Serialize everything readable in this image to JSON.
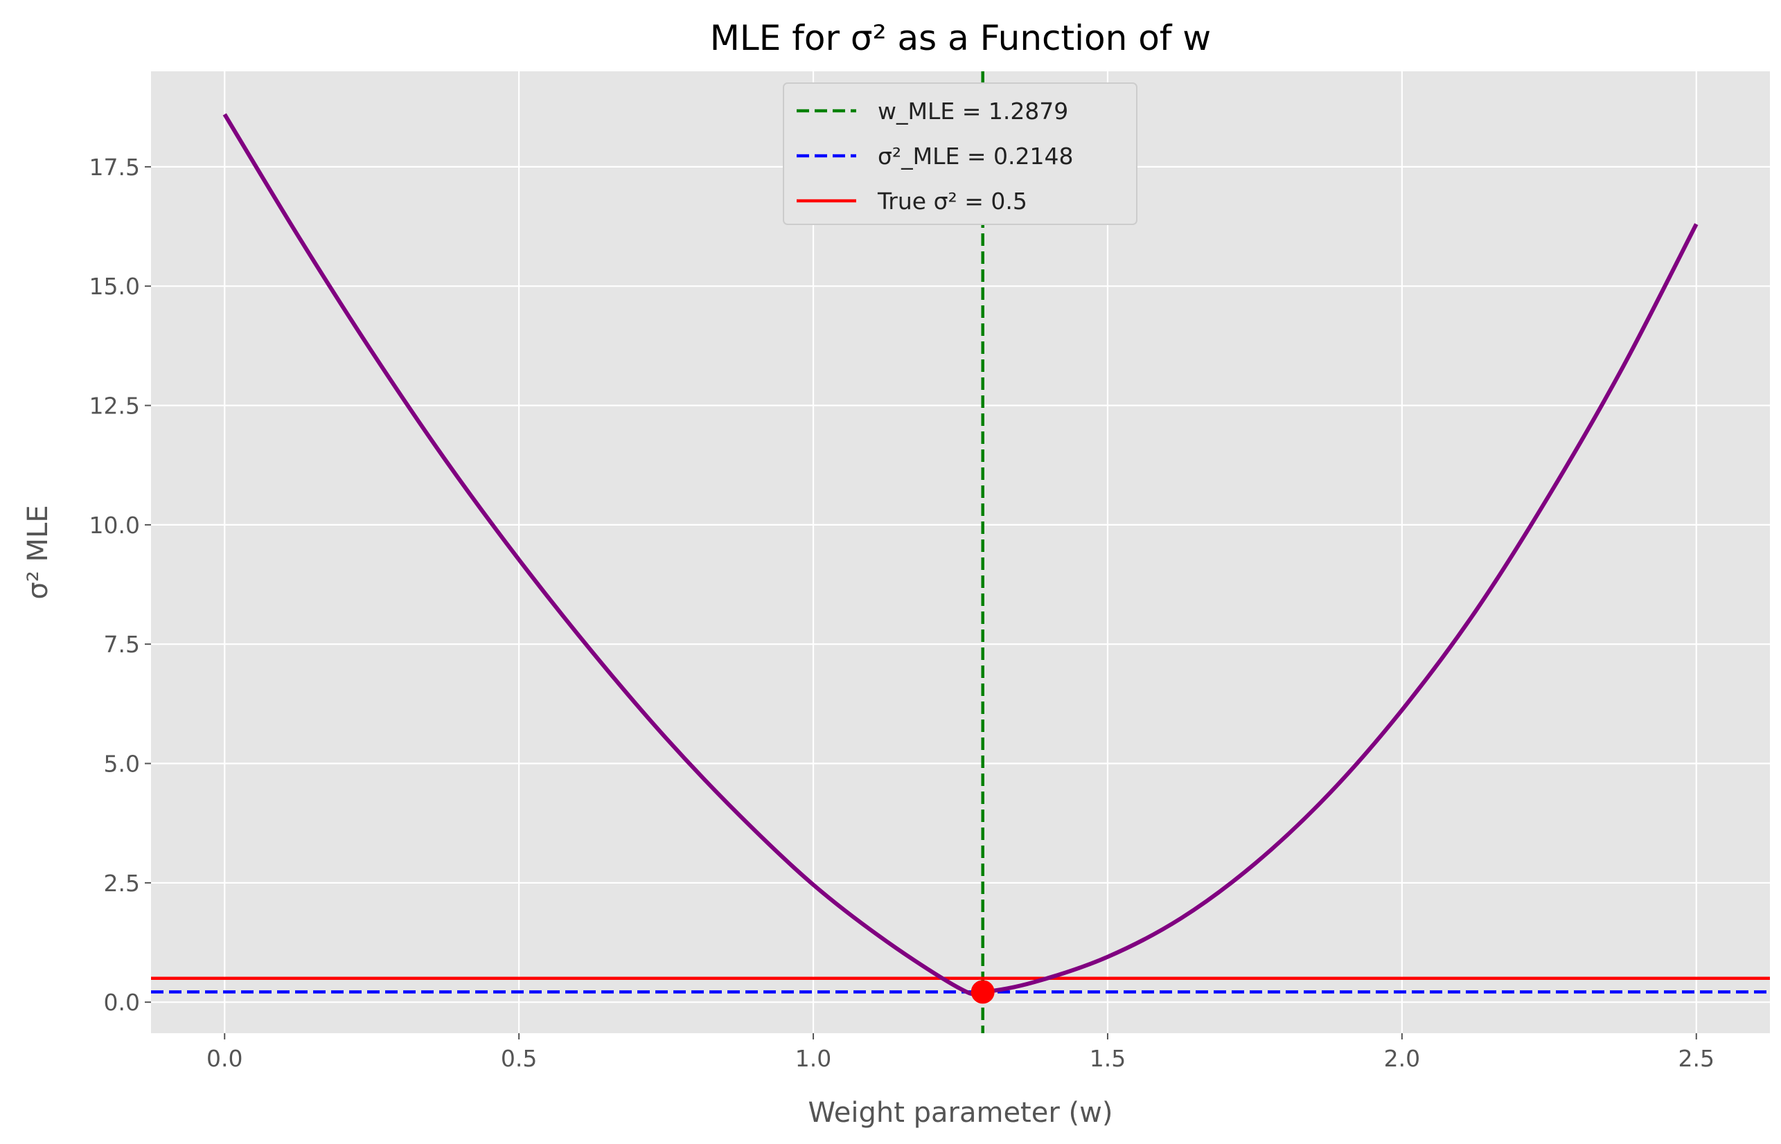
{
  "chart_data": {
    "type": "line",
    "title": "MLE for σ² as a Function of w",
    "xlabel": "Weight parameter (w)",
    "ylabel": "σ² MLE",
    "xlim": [
      -0.125,
      2.625
    ],
    "ylim": [
      -0.65,
      19.5
    ],
    "x_ticks": [
      0.0,
      0.5,
      1.0,
      1.5,
      2.0,
      2.5
    ],
    "x_tick_labels": [
      "0.0",
      "0.5",
      "1.0",
      "1.5",
      "2.0",
      "2.5"
    ],
    "y_ticks": [
      0.0,
      2.5,
      5.0,
      7.5,
      10.0,
      12.5,
      15.0,
      17.5
    ],
    "y_tick_labels": [
      "0.0",
      "2.5",
      "5.0",
      "7.5",
      "10.0",
      "12.5",
      "15.0",
      "17.5"
    ],
    "grid": true,
    "legend_position": "top-center",
    "curve": {
      "color": "#800080",
      "x": [
        0.0,
        0.125,
        0.25,
        0.375,
        0.5,
        0.625,
        0.75,
        0.875,
        1.0,
        1.125,
        1.25,
        1.2879,
        1.375,
        1.5,
        1.625,
        1.75,
        1.875,
        2.0,
        2.125,
        2.25,
        2.375,
        2.5
      ],
      "y": [
        18.6,
        16.05,
        13.63,
        11.36,
        9.27,
        7.33,
        5.53,
        3.91,
        2.46,
        1.27,
        0.28,
        0.2148,
        0.42,
        0.95,
        1.76,
        2.9,
        4.35,
        6.12,
        8.19,
        10.62,
        13.3,
        16.3
      ]
    },
    "series": [
      {
        "name": "w_MLE = 1.2879",
        "kind": "vline",
        "value": 1.2879,
        "color": "#008000",
        "style": "dashed"
      },
      {
        "name": "σ²_MLE = 0.2148",
        "kind": "hline",
        "value": 0.2148,
        "color": "#0000ff",
        "style": "dashed"
      },
      {
        "name": "True σ² = 0.5",
        "kind": "hline",
        "value": 0.5,
        "color": "#ff0000",
        "style": "solid"
      }
    ],
    "marker": {
      "x": 1.2879,
      "y": 0.2148,
      "color": "#ff0000"
    }
  }
}
